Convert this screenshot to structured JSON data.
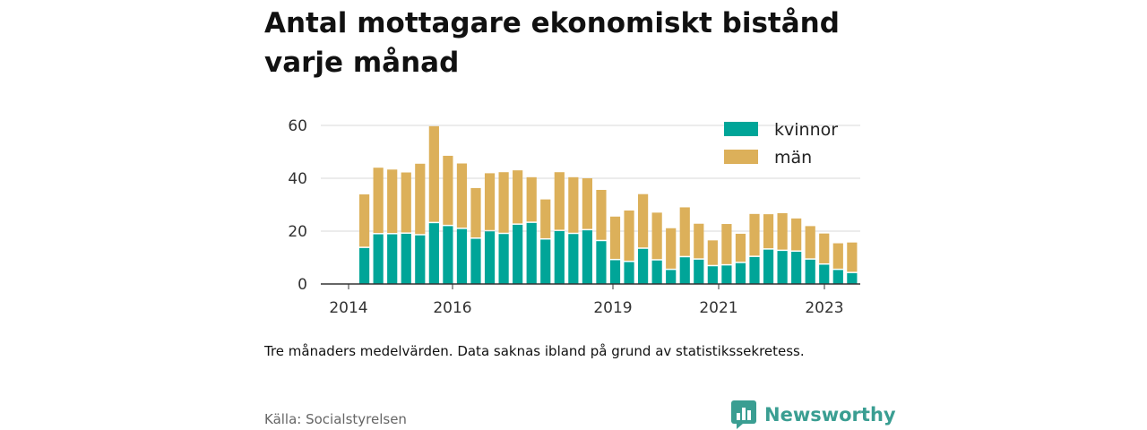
{
  "header": {
    "title": "Antal mottagare ekonomiskt bistånd varje månad"
  },
  "footer": {
    "note": "Tre månaders medelvärden. Data saknas ibland på grund av statistikssekretess.",
    "source": "Källa: Socialstyrelsen",
    "brand": "Newsworthy"
  },
  "colors": {
    "kvinnor": "#00a598",
    "man": "#dcb05a",
    "grid": "#d9d9d9",
    "axis": "#333333",
    "brand": "#3a9e92"
  },
  "chart_data": {
    "type": "bar",
    "stacked": true,
    "x_ticks": [
      "2014",
      "2016",
      "2019",
      "2021",
      "2023"
    ],
    "ylim": [
      0,
      60
    ],
    "y_ticks": [
      0,
      20,
      40,
      60
    ],
    "grid": true,
    "legend_position": "top-right",
    "series": [
      {
        "name": "kvinnor",
        "values": [
          13.6,
          18.8,
          18.8,
          19.0,
          18.4,
          23.0,
          21.9,
          20.8,
          17.1,
          19.9,
          18.9,
          22.4,
          23.1,
          16.8,
          20.0,
          18.9,
          20.3,
          16.2,
          9.0,
          8.3,
          13.3,
          8.9,
          5.3,
          10.1,
          9.2,
          6.7,
          7.0,
          7.9,
          10.2,
          13.0,
          12.5,
          12.2,
          9.2,
          7.3,
          5.3,
          4.1
        ]
      },
      {
        "name": "män",
        "values": [
          20.3,
          25.2,
          24.5,
          23.2,
          27.1,
          36.7,
          26.6,
          24.8,
          19.2,
          22.0,
          23.4,
          20.6,
          17.3,
          15.2,
          22.3,
          21.5,
          19.7,
          19.4,
          16.5,
          19.5,
          20.7,
          18.1,
          15.8,
          18.9,
          13.6,
          9.8,
          15.7,
          11.1,
          16.3,
          13.4,
          14.3,
          12.6,
          12.7,
          11.8,
          10.1,
          11.6
        ]
      }
    ]
  }
}
